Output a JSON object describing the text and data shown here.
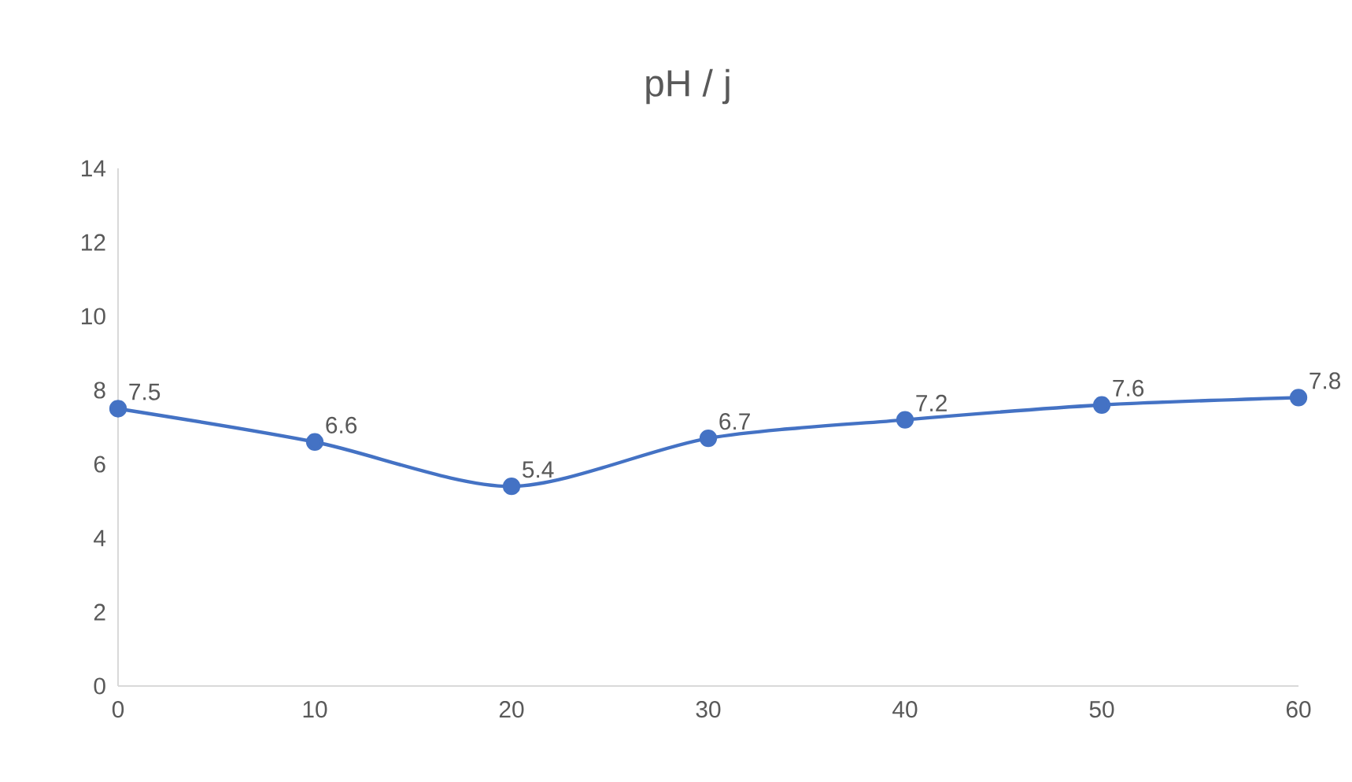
{
  "chart_data": {
    "type": "line",
    "title": "pH / j",
    "x": [
      0,
      10,
      20,
      30,
      40,
      50,
      60
    ],
    "series": [
      {
        "color": "#4472c4",
        "values": [
          7.5,
          6.6,
          5.4,
          6.7,
          7.2,
          7.6,
          7.8
        ]
      }
    ],
    "xlim": [
      0,
      60
    ],
    "xticks": [
      0,
      10,
      20,
      30,
      40,
      50,
      60
    ],
    "ylim": [
      0,
      14
    ],
    "yticks": [
      0,
      2,
      4,
      6,
      8,
      10,
      12,
      14
    ],
    "grid": false,
    "marker": "circle",
    "line_style": "solid",
    "data_labels": true
  }
}
